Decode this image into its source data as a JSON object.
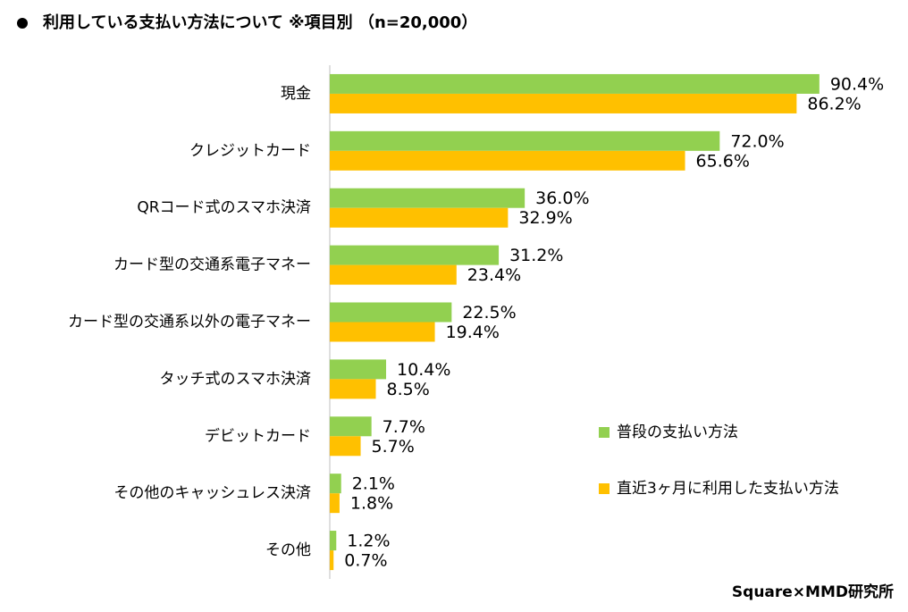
{
  "chart_data": {
    "type": "bar",
    "orientation": "horizontal",
    "title": "利用している支払い方法について ※項目別 （n=20,000）",
    "source": "Square×MMD研究所",
    "categories": [
      "現金",
      "クレジットカード",
      "QRコード式のスマホ決済",
      "カード型の交通系電子マネー",
      "カード型の交通系以外の電子マネー",
      "タッチ式のスマホ決済",
      "デビットカード",
      "その他のキャッシュレス決済",
      "その他"
    ],
    "series": [
      {
        "name": "普段の支払い方法",
        "color": "#92d050",
        "values": [
          90.4,
          72.0,
          36.0,
          31.2,
          22.5,
          10.4,
          7.7,
          2.1,
          1.2
        ],
        "value_labels": [
          "90.4%",
          "72.0%",
          "36.0%",
          "31.2%",
          "22.5%",
          "10.4%",
          "7.7%",
          "2.1%",
          "1.2%"
        ]
      },
      {
        "name": "直近3ヶ月に利用した支払い方法",
        "color": "#ffc000",
        "values": [
          86.2,
          65.6,
          32.9,
          23.4,
          19.4,
          8.5,
          5.7,
          1.8,
          0.7
        ],
        "value_labels": [
          "86.2%",
          "65.6%",
          "32.9%",
          "23.4%",
          "19.4%",
          "8.5%",
          "5.7%",
          "1.8%",
          "0.7%"
        ]
      }
    ],
    "xlim": [
      0,
      100
    ]
  }
}
